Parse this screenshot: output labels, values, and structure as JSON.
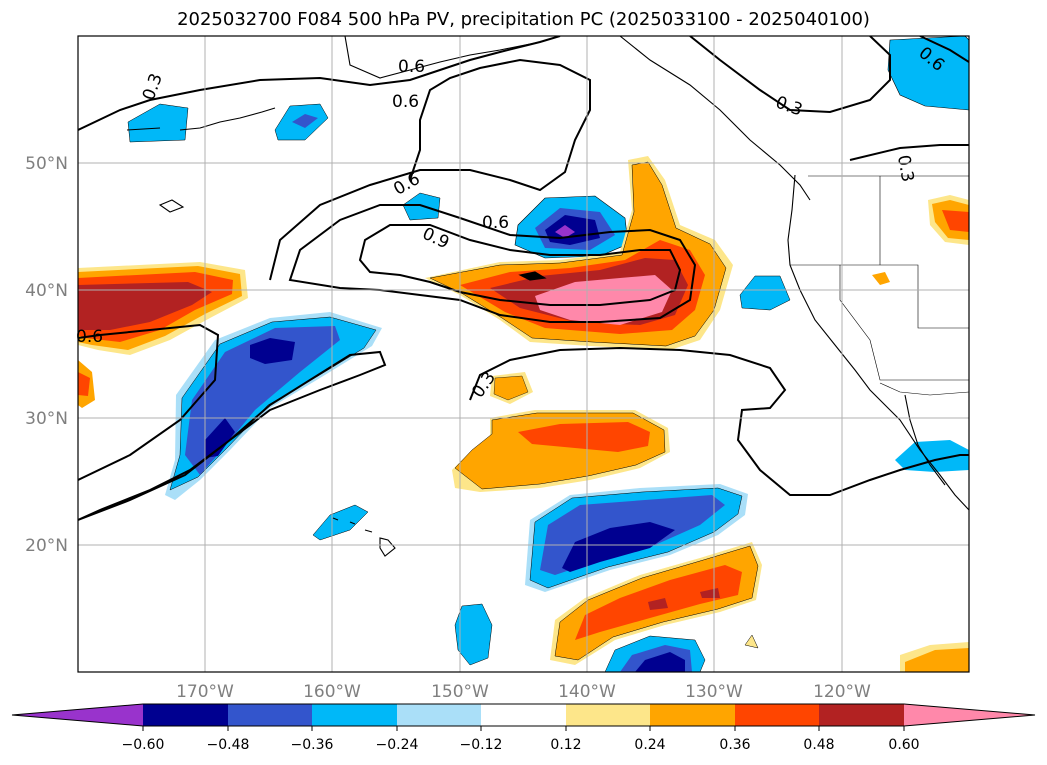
{
  "title": "2025032700 F084 500 hPa PV, precipitation PC (2025033100 - 2025040100)",
  "colors": {
    "purple": "#9933cc",
    "navy": "#000090",
    "royal": "#3355cc",
    "sky": "#00b8f8",
    "pale_blue": "#aadff8",
    "white": "#ffffff",
    "pale_yellow": "#fde68a",
    "orange": "#ffa500",
    "red_orange": "#ff4500",
    "firebrick": "#b22222",
    "pink": "#ff88aa"
  },
  "lat_labels": [
    "50°N",
    "40°N",
    "30°N",
    "20°N"
  ],
  "lon_labels": [
    "170°W",
    "160°W",
    "150°W",
    "140°W",
    "130°W",
    "120°W"
  ],
  "colorbar_ticks": [
    "−0.60",
    "−0.48",
    "−0.36",
    "−0.24",
    "−0.12",
    "0.12",
    "0.24",
    "0.36",
    "0.48",
    "0.60"
  ],
  "contour_labels": {
    "c1": "0.3",
    "c2": "0.6",
    "c3": "0.6",
    "c4": "0.6",
    "c5": "0.9",
    "c6": "0.6",
    "c7": "0.3",
    "c8": "0.6",
    "c9": "0.3",
    "c10": "0.6",
    "c11": "0.3"
  }
}
